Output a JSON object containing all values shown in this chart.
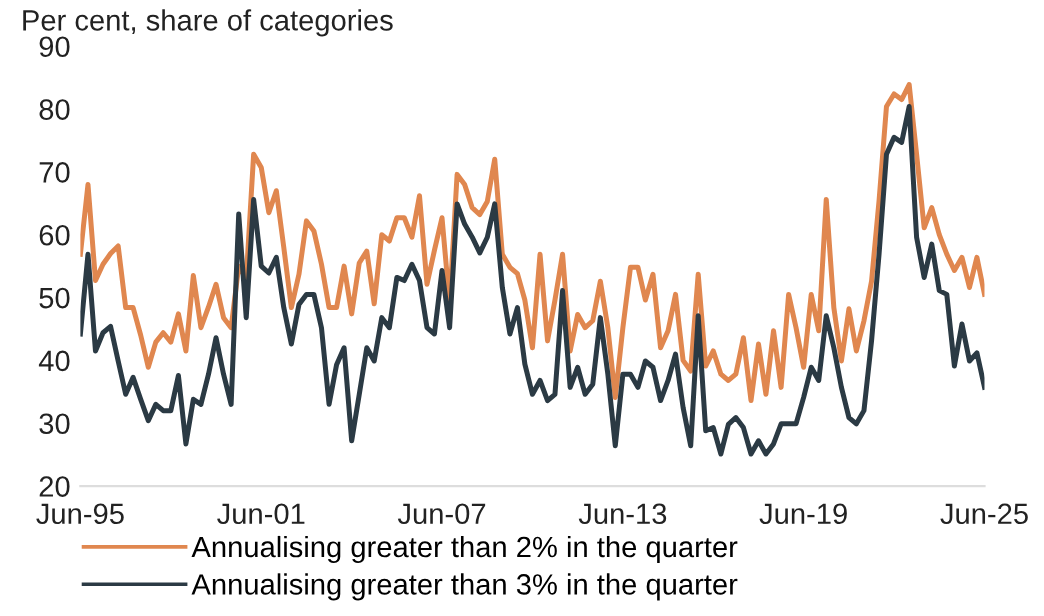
{
  "chart_data": {
    "type": "line",
    "title": "Per cent, share of categories",
    "x": [
      "1995-06",
      "1995-09",
      "1995-12",
      "1996-03",
      "1996-06",
      "1996-09",
      "1996-12",
      "1997-03",
      "1997-06",
      "1997-09",
      "1997-12",
      "1998-03",
      "1998-06",
      "1998-09",
      "1998-12",
      "1999-03",
      "1999-06",
      "1999-09",
      "1999-12",
      "2000-03",
      "2000-06",
      "2000-09",
      "2000-12",
      "2001-03",
      "2001-06",
      "2001-09",
      "2001-12",
      "2002-03",
      "2002-06",
      "2002-09",
      "2002-12",
      "2003-03",
      "2003-06",
      "2003-09",
      "2003-12",
      "2004-03",
      "2004-06",
      "2004-09",
      "2004-12",
      "2005-03",
      "2005-06",
      "2005-09",
      "2005-12",
      "2006-03",
      "2006-06",
      "2006-09",
      "2006-12",
      "2007-03",
      "2007-06",
      "2007-09",
      "2007-12",
      "2008-03",
      "2008-06",
      "2008-09",
      "2008-12",
      "2009-03",
      "2009-06",
      "2009-09",
      "2009-12",
      "2010-03",
      "2010-06",
      "2010-09",
      "2010-12",
      "2011-03",
      "2011-06",
      "2011-09",
      "2011-12",
      "2012-03",
      "2012-06",
      "2012-09",
      "2012-12",
      "2013-03",
      "2013-06",
      "2013-09",
      "2013-12",
      "2014-03",
      "2014-06",
      "2014-09",
      "2014-12",
      "2015-03",
      "2015-06",
      "2015-09",
      "2015-12",
      "2016-03",
      "2016-06",
      "2016-09",
      "2016-12",
      "2017-03",
      "2017-06",
      "2017-09",
      "2017-12",
      "2018-03",
      "2018-06",
      "2018-09",
      "2018-12",
      "2019-03",
      "2019-06",
      "2019-09",
      "2019-12",
      "2020-03",
      "2020-06",
      "2020-09",
      "2020-12",
      "2021-03",
      "2021-06",
      "2021-09",
      "2021-12",
      "2022-03",
      "2022-06",
      "2022-09",
      "2022-12",
      "2023-03",
      "2023-06",
      "2023-09",
      "2023-12",
      "2024-03",
      "2024-06",
      "2024-09",
      "2024-12",
      "2025-03",
      "2025-06"
    ],
    "series": [
      {
        "name": "Annualising greater than 2% in the quarter",
        "color": "#e0874f",
        "values": [
          56.9,
          68,
          52.7,
          55.3,
          57,
          58.2,
          48.4,
          48.4,
          44,
          38.9,
          42.9,
          44.4,
          42.9,
          47.4,
          41.5,
          53.5,
          45.2,
          48.5,
          52.1,
          46.8,
          45.2,
          55,
          53,
          72.8,
          70.7,
          63.5,
          67,
          58,
          48.4,
          53.7,
          62.2,
          60.6,
          55.3,
          48.4,
          48.4,
          55,
          47.4,
          55.5,
          57.4,
          49,
          60,
          59,
          62.7,
          62.7,
          59.6,
          66.2,
          52.1,
          57.5,
          62.7,
          49,
          69.6,
          68,
          64.3,
          63.2,
          65.3,
          72,
          56.9,
          54.8,
          53.8,
          49.6,
          42,
          56.9,
          43.1,
          49.6,
          56.9,
          41.5,
          47.3,
          45.2,
          46.3,
          52.6,
          45.2,
          34.1,
          45.2,
          54.8,
          54.8,
          49.6,
          53.7,
          42,
          44.7,
          50.5,
          40,
          38.3,
          53.7,
          39.1,
          41.5,
          37.8,
          36.8,
          37.8,
          43.6,
          33.6,
          42.6,
          34.6,
          44.7,
          35.7,
          50.5,
          45.2,
          38.9,
          50.5,
          44.7,
          65.6,
          48.4,
          39.9,
          48.2,
          41.5,
          46.3,
          52.6,
          65.4,
          80.4,
          82.4,
          81.5,
          83.9,
          72.8,
          61.1,
          64.3,
          60,
          56.9,
          54.3,
          56.4,
          51.6,
          56.4,
          50.5
        ]
      },
      {
        "name": "Annualising greater than 3% in the quarter",
        "color": "#2b3a44",
        "values": [
          44.2,
          56.9,
          41.5,
          44.4,
          45.4,
          39.9,
          34.6,
          37.3,
          33.8,
          30.4,
          33,
          32,
          32,
          37.6,
          26.7,
          33.8,
          33,
          37.8,
          43.6,
          37.8,
          33,
          63.3,
          46.8,
          65.6,
          55,
          53.9,
          56.4,
          48.4,
          42.6,
          48.9,
          50.5,
          50.5,
          45.2,
          33,
          39.3,
          42,
          27.2,
          34.6,
          42,
          39.9,
          46.8,
          45.2,
          53.2,
          52.7,
          55.3,
          52.7,
          45.2,
          44.2,
          54.3,
          45.2,
          64.9,
          61.7,
          59.6,
          57.1,
          59.6,
          64.9,
          51.6,
          44.2,
          48.4,
          39.4,
          34.6,
          36.8,
          33.6,
          34.6,
          51.1,
          35.7,
          38.9,
          34.6,
          36.2,
          46.8,
          37.8,
          26.4,
          37.8,
          37.8,
          35.7,
          39.9,
          38.9,
          33.6,
          36.8,
          41,
          32.5,
          26.4,
          47.1,
          28.8,
          29.3,
          25.1,
          29.8,
          30.9,
          29.3,
          25.1,
          27.2,
          25.1,
          26.7,
          29.9,
          29.9,
          29.9,
          34.1,
          38.9,
          36.8,
          47.1,
          42,
          35.7,
          30.9,
          29.9,
          32,
          43.1,
          56.9,
          72.8,
          75.5,
          74.7,
          80.4,
          59.6,
          53.2,
          58.5,
          51.1,
          50.5,
          39.1,
          45.8,
          39.9,
          41.2,
          35.7
        ]
      }
    ],
    "xlim": [
      "1995-06",
      "2025-06"
    ],
    "xticks": [
      {
        "value": "1995-06",
        "label": "Jun-95"
      },
      {
        "value": "2001-06",
        "label": "Jun-01"
      },
      {
        "value": "2007-06",
        "label": "Jun-07"
      },
      {
        "value": "2013-06",
        "label": "Jun-13"
      },
      {
        "value": "2019-06",
        "label": "Jun-19"
      },
      {
        "value": "2025-06",
        "label": "Jun-25"
      }
    ],
    "ylim": [
      20,
      90
    ],
    "yticks": [
      20,
      30,
      40,
      50,
      60,
      70,
      80,
      90
    ],
    "grid": false,
    "legend": "bottom",
    "marker": "none",
    "line_style": "solid"
  }
}
